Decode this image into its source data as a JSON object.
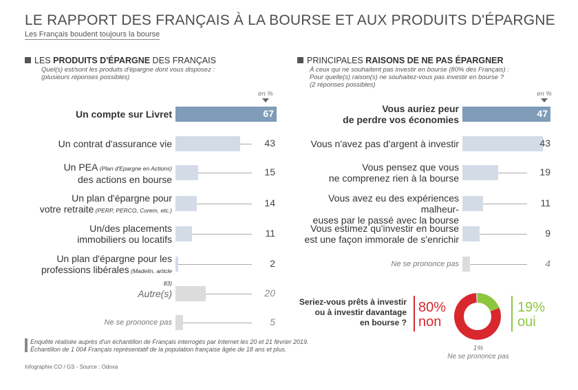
{
  "header": {
    "title": "LE RAPPORT DES FRANÇAIS À LA BOURSE ET AUX PRODUITS D'ÉPARGNE",
    "subtitle": "Les Français boudent toujours la bourse"
  },
  "left_panel": {
    "title_pre": "LES ",
    "title_bold": "PRODUITS D'ÉPARGNE",
    "title_post": " DES FRANÇAIS",
    "question_1": "Quel(s) est/sont les produits d'épargne dont vous disposez :",
    "question_2": "(plusieurs réponses possibles)",
    "unit": "en %"
  },
  "right_panel": {
    "title_pre": "PRINCIPALES ",
    "title_bold": "RAISONS DE NE PAS ÉPARGNER",
    "question_1": "À ceux qui ne souhaitent pas investir en bourse (80% des Français) :",
    "question_2": "Pour quelle(s) raison(s) ne souhaitez-vous pas investir en bourse ?",
    "question_3": "(2 réponses possibles)",
    "unit": "en %"
  },
  "colors": {
    "highlight_bar": "#7f9cb8",
    "bar": "#d3dce6",
    "muted_bar": "#dcdcdc",
    "red": "#d9272e",
    "green": "#8cc63f",
    "panel_square": "#555555"
  },
  "chart_data": [
    {
      "type": "bar",
      "orientation": "horizontal",
      "title": "LES PRODUITS D'ÉPARGNE DES FRANÇAIS",
      "unit": "en %",
      "categories": [
        "Un compte sur Livret",
        "Un contrat d'assurance vie",
        "Un PEA (Plan d'Epargne en Actions) des actions en bourse",
        "Un plan d'épargne pour votre retraite (PERP, PERCO, Corem, etc.)",
        "Un/des placements immobiliers ou locatifs",
        "Un plan d'épargne pour les professions libérales (Madelin, article 83)",
        "Autre(s)",
        "Ne se prononce pas"
      ],
      "values": [
        67,
        43,
        15,
        14,
        11,
        2,
        20,
        5
      ],
      "labels": [
        {
          "line1": "Un compte sur Livret"
        },
        {
          "line1": "Un contrat d'assurance vie"
        },
        {
          "line1_main": "Un PEA",
          "line1_small": " (Plan d'Epargne en Actions)",
          "line2": "des actions en bourse"
        },
        {
          "line1": "Un plan d'épargne pour",
          "line2_main": "votre retraite",
          "line2_small": " (PERP, PERCO, Corem, etc.)"
        },
        {
          "line1": "Un/des placements",
          "line2": "immobiliers ou locatifs"
        },
        {
          "line1": "Un plan d'épargne pour les",
          "line2_main": "professions libérales",
          "line2_small": " (Madelin, article 83)"
        },
        {
          "line1": "Autre(s)"
        },
        {
          "line1": "Ne se prononce pas"
        }
      ]
    },
    {
      "type": "bar",
      "orientation": "horizontal",
      "title": "PRINCIPALES RAISONS DE NE PAS ÉPARGNER",
      "unit": "en %",
      "categories": [
        "Vous auriez peur de perdre vos économies",
        "Vous n'avez pas d'argent à investir",
        "Vous pensez que vous ne comprenez rien à la bourse",
        "Vous avez eu des expériences malheureuses par le passé avec la bourse",
        "Vous estimez qu'investir en bourse est une façon immorale de s'enrichir",
        "Ne se prononce pas"
      ],
      "values": [
        47,
        43,
        19,
        11,
        9,
        4
      ],
      "labels": [
        {
          "line1": "Vous auriez peur",
          "line2": "de perdre vos économies"
        },
        {
          "line1": "Vous n'avez pas d'argent à investir"
        },
        {
          "line1": "Vous pensez que vous",
          "line2": "ne comprenez rien à la bourse"
        },
        {
          "line1": "Vous avez eu des expériences malheur-",
          "line2": "euses par le passé avec la bourse"
        },
        {
          "line1": "Vous estimez qu'investir en bourse",
          "line2": "est une façon immorale de s'enrichir"
        },
        {
          "line1": "Ne se prononce pas"
        }
      ]
    },
    {
      "type": "pie",
      "title": "Seriez-vous prêts à investir ou à investir davantage en bourse ?",
      "categories": [
        "non",
        "oui",
        "Ne se prononce pas"
      ],
      "values": [
        80,
        19,
        1
      ]
    }
  ],
  "poll": {
    "question_1": "Seriez-vous prêts à investir",
    "question_2": "ou à investir davantage",
    "question_3": "en bourse ?",
    "no_pct": "80%",
    "no_label": "non",
    "yes_pct": "19%",
    "yes_label": "oui",
    "nsp_pct": "1%",
    "nsp_label": "Ne se prononce pas"
  },
  "footer": {
    "line_1": "Enquête réalisée auprès d'un échantillon de Français interrogés par Internet les 20 et 21 février 2019.",
    "line_2": "Échantillon de 1 004 Français représentatif de la population française âgée de 18 ans et plus.",
    "credit": "Infographie CO / GS - Source : Odoxa"
  }
}
